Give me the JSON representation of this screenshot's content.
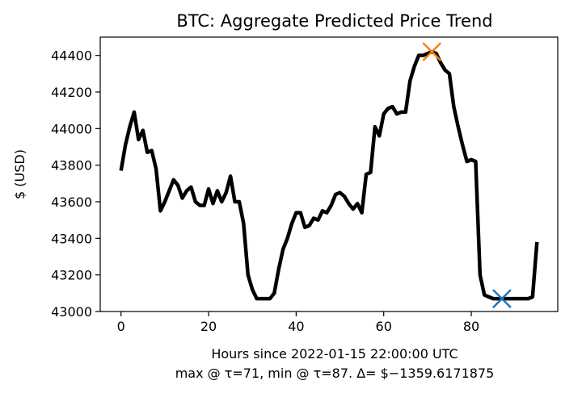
{
  "chart_data": {
    "type": "line",
    "title": "BTC: Aggregate Predicted Price Trend",
    "ylabel": "$ (USD)",
    "xlabel": "Hours since 2022-01-15 22:00:00 UTC",
    "subtitle": "max @ τ=71, min @ τ=87. Δ= $−1359.6171875",
    "xlim": [
      -4.75,
      99.75
    ],
    "ylim": [
      43000,
      44500
    ],
    "x_ticks": [
      0,
      20,
      40,
      60,
      80
    ],
    "y_ticks": [
      43000,
      43200,
      43400,
      43600,
      43800,
      44000,
      44200,
      44400
    ],
    "grid": false,
    "series": [
      {
        "color": "#000000",
        "x": [
          0,
          1,
          2,
          3,
          4,
          5,
          6,
          7,
          8,
          9,
          10,
          11,
          12,
          13,
          14,
          15,
          16,
          17,
          18,
          19,
          20,
          21,
          22,
          23,
          24,
          25,
          26,
          27,
          28,
          29,
          30,
          31,
          32,
          33,
          34,
          35,
          36,
          37,
          38,
          39,
          40,
          41,
          42,
          43,
          44,
          45,
          46,
          47,
          48,
          49,
          50,
          51,
          52,
          53,
          54,
          55,
          56,
          57,
          58,
          59,
          60,
          61,
          62,
          63,
          64,
          65,
          66,
          67,
          68,
          69,
          70,
          71,
          72,
          73,
          74,
          75,
          76,
          77,
          78,
          79,
          80,
          81,
          82,
          83,
          84,
          85,
          86,
          87,
          88,
          89,
          90,
          91,
          92,
          93,
          94,
          95
        ],
        "values": [
          43770,
          43910,
          44010,
          44090,
          43940,
          43990,
          43870,
          43880,
          43780,
          43550,
          43600,
          43660,
          43720,
          43690,
          43620,
          43660,
          43680,
          43600,
          43580,
          43580,
          43670,
          43590,
          43660,
          43600,
          43650,
          43740,
          43600,
          43600,
          43480,
          43200,
          43120,
          43070,
          43070,
          43070,
          43070,
          43100,
          43230,
          43340,
          43400,
          43480,
          43540,
          43540,
          43460,
          43470,
          43510,
          43500,
          43550,
          43540,
          43580,
          43640,
          43650,
          43630,
          43590,
          43560,
          43590,
          43540,
          43750,
          43760,
          44010,
          43960,
          44080,
          44110,
          44120,
          44080,
          44090,
          44090,
          44260,
          44340,
          44400,
          44400,
          44410,
          44420,
          44410,
          44360,
          44320,
          44300,
          44120,
          44010,
          43910,
          43820,
          43830,
          43820,
          43200,
          43090,
          43080,
          43070,
          43070,
          43070,
          43070,
          43070,
          43070,
          43070,
          43070,
          43070,
          43080,
          43380
        ]
      }
    ],
    "markers": [
      {
        "x": 71,
        "y": 44420,
        "symbol": "x",
        "color": "#ff7f0e"
      },
      {
        "x": 87,
        "y": 43070,
        "symbol": "x",
        "color": "#1f77b4"
      }
    ]
  }
}
